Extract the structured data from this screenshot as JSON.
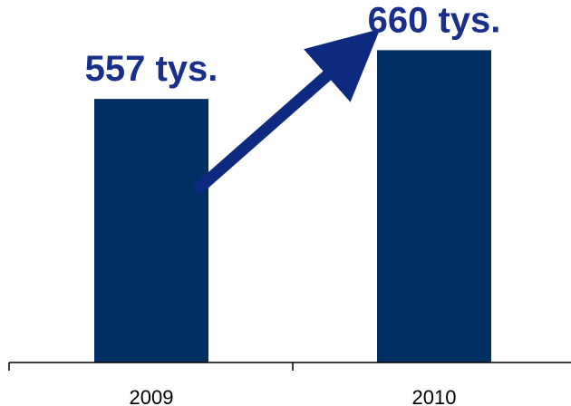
{
  "chart_data": {
    "type": "bar",
    "categories": [
      "2009",
      "2010"
    ],
    "values": [
      557,
      660
    ],
    "value_unit_label": "tys.",
    "data_labels": [
      "557 tys.",
      "660 tys."
    ],
    "title": "",
    "xlabel": "",
    "ylabel": "",
    "grid": false,
    "legend": "none",
    "annotation": "arrow-from-2009-to-2010",
    "colors": {
      "bar": "#003063",
      "label": "#1a2f8a",
      "arrow": "#0d2a80",
      "axis": "#000000"
    }
  }
}
